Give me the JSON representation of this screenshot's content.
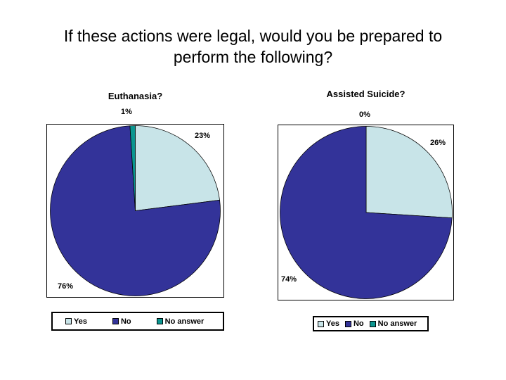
{
  "slide": {
    "title_line1": "If these actions were legal, would you be prepared to",
    "title_line2": "perform the following?"
  },
  "chart_data": [
    {
      "type": "pie",
      "title": "Euthanasia?",
      "categories": [
        "Yes",
        "No",
        "No answer"
      ],
      "values": [
        23,
        76,
        1
      ],
      "labels": [
        "23%",
        "76%",
        "1%"
      ],
      "colors": [
        "#C8E4E8",
        "#333399",
        "#0A9690"
      ],
      "start_angle_deg": 0,
      "direction": "clockwise",
      "legend_position": "bottom"
    },
    {
      "type": "pie",
      "title": "Assisted Suicide?",
      "categories": [
        "Yes",
        "No",
        "No answer"
      ],
      "values": [
        26,
        74,
        0
      ],
      "labels": [
        "26%",
        "74%",
        "0%"
      ],
      "colors": [
        "#C8E4E8",
        "#333399",
        "#0A9690"
      ],
      "start_angle_deg": 0,
      "direction": "clockwise",
      "legend_position": "bottom"
    }
  ]
}
